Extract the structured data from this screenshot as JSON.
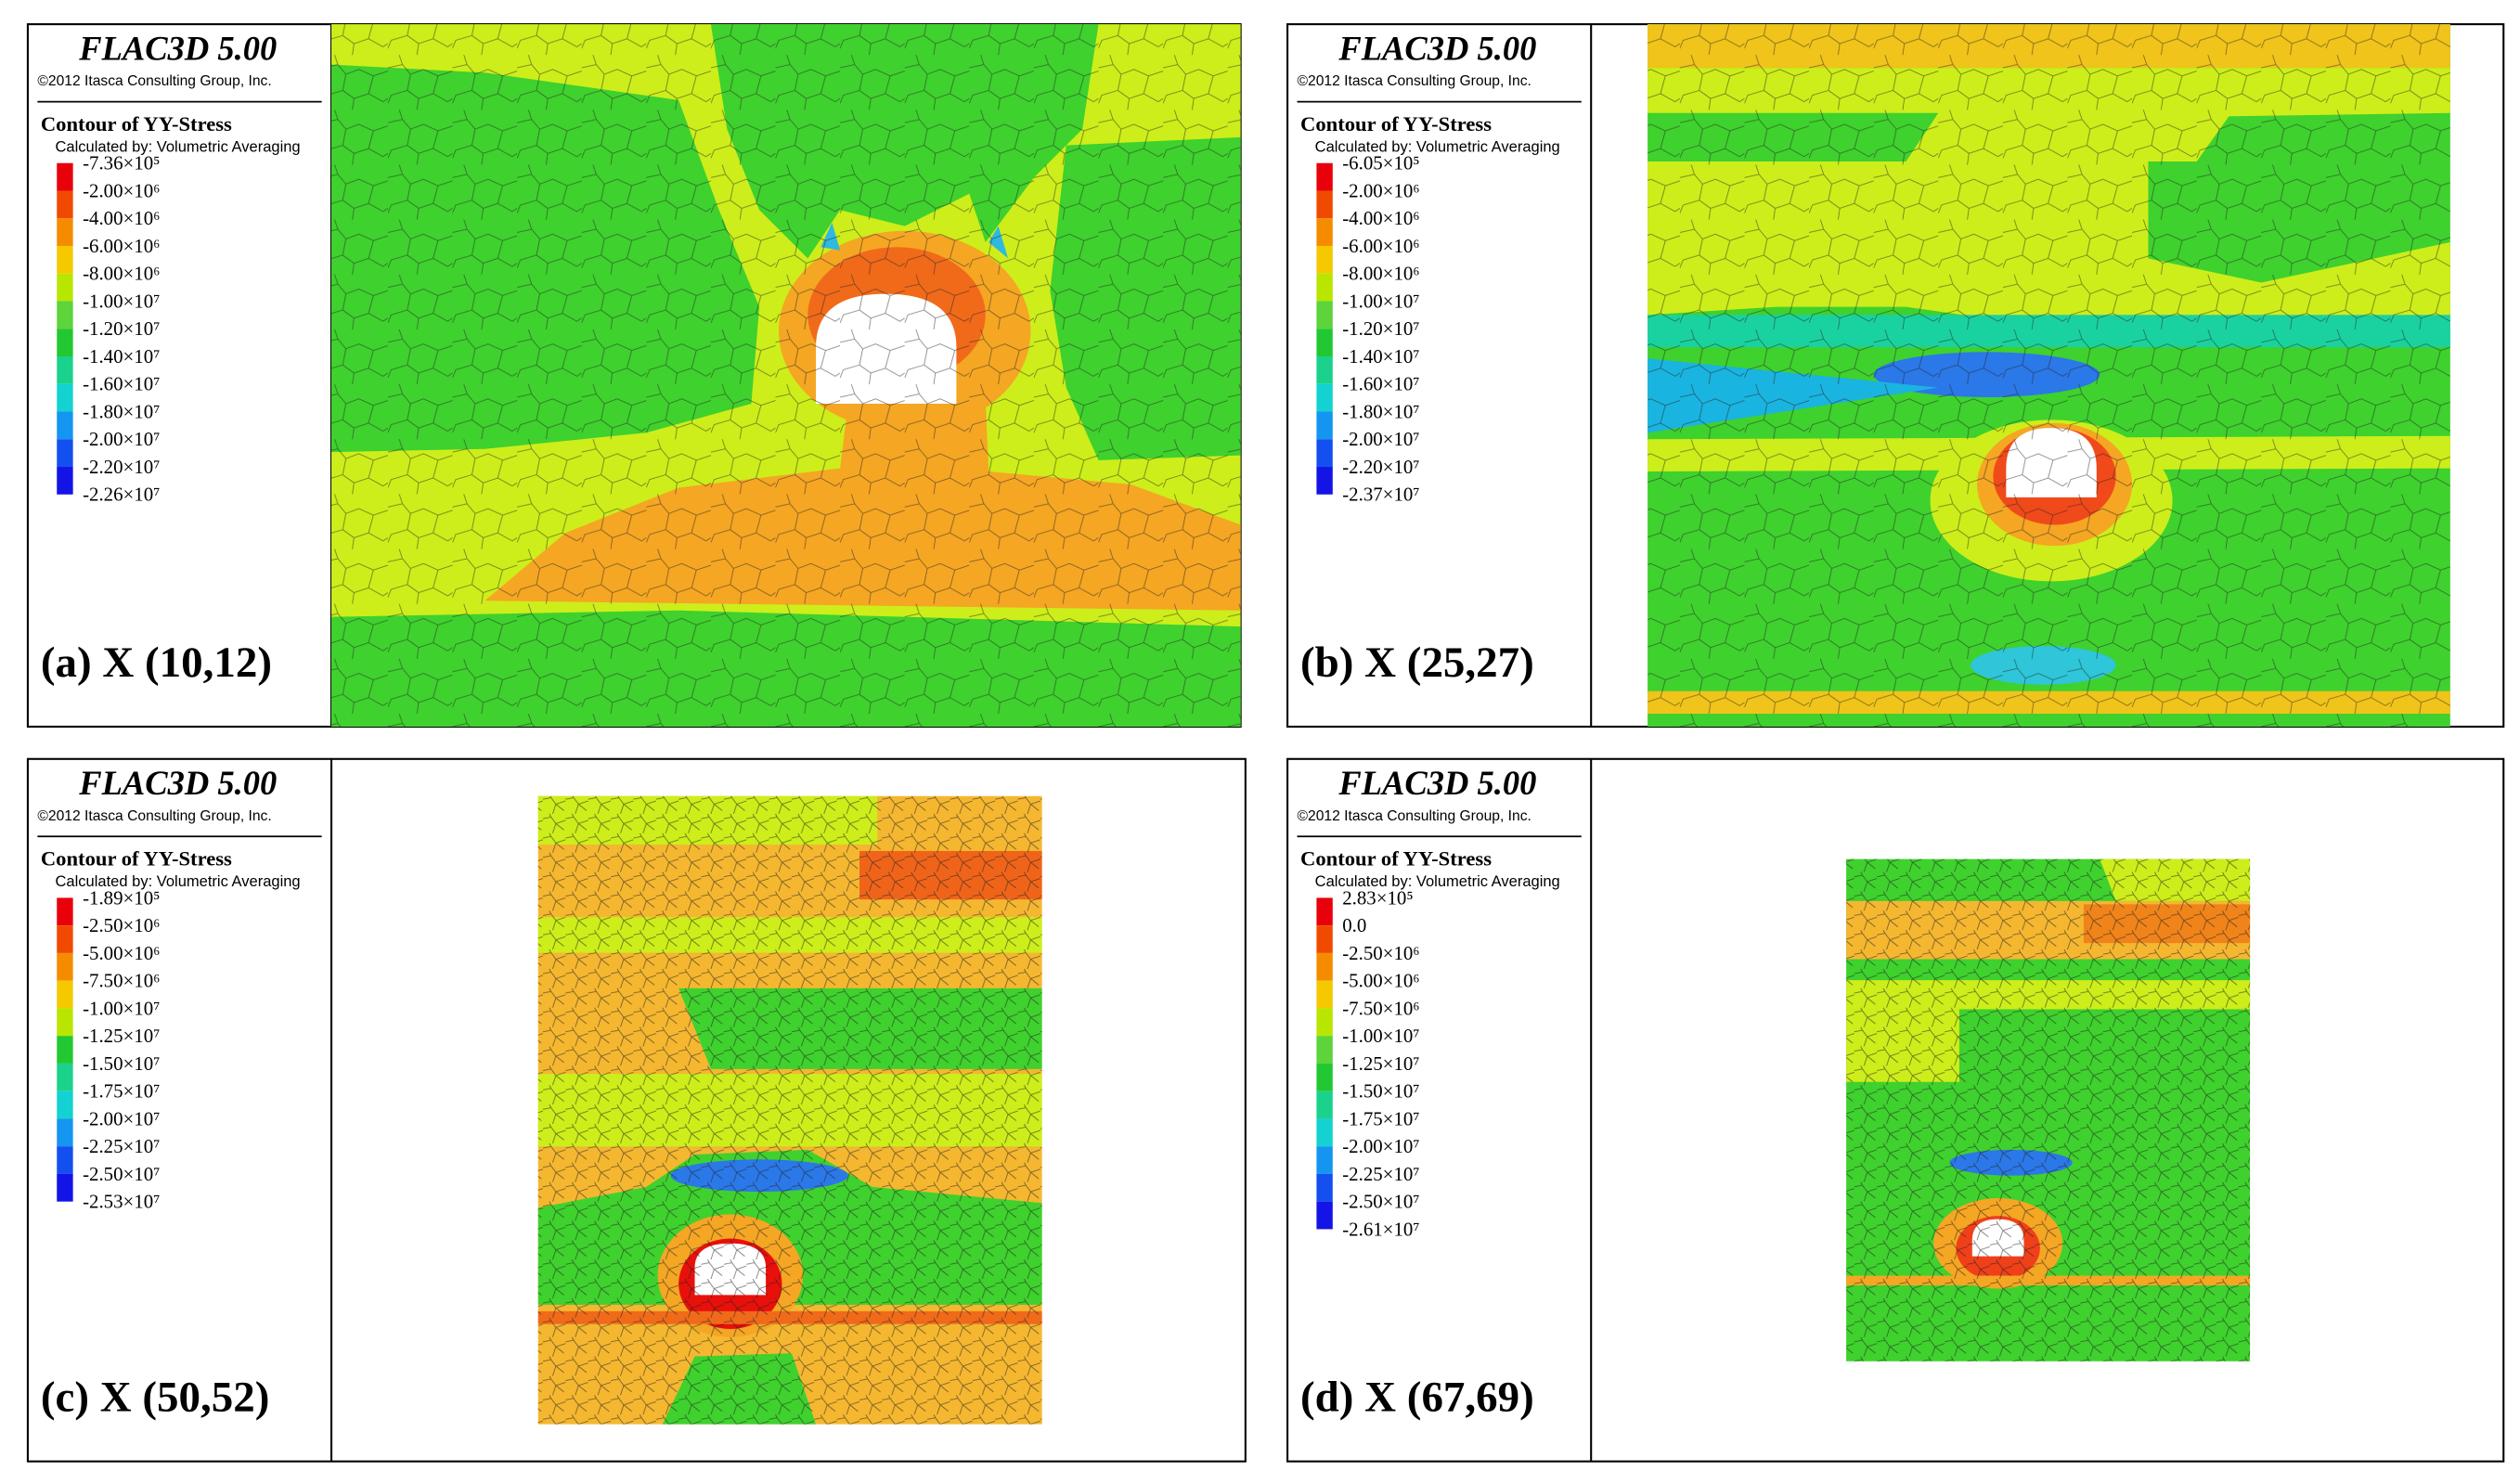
{
  "panels": [
    {
      "title": "FLAC3D 5.00",
      "copyright": "©2012 Itasca Consulting Group, Inc.",
      "contour_title": "Contour of YY-Stress",
      "method": "Calculated by: Volumetric Averaging",
      "legend": [
        "-7.36×10⁵",
        "-2.00×10⁶",
        "-4.00×10⁶",
        "-6.00×10⁶",
        "-8.00×10⁶",
        "-1.00×10⁷",
        "-1.20×10⁷",
        "-1.40×10⁷",
        "-1.60×10⁷",
        "-1.80×10⁷",
        "-2.00×10⁷",
        "-2.20×10⁷",
        "-2.26×10⁷"
      ],
      "caption": "(a) X (10,12)"
    },
    {
      "title": "FLAC3D 5.00",
      "copyright": "©2012 Itasca Consulting Group, Inc.",
      "contour_title": "Contour of YY-Stress",
      "method": "Calculated by: Volumetric Averaging",
      "legend": [
        "-6.05×10⁵",
        "-2.00×10⁶",
        "-4.00×10⁶",
        "-6.00×10⁶",
        "-8.00×10⁶",
        "-1.00×10⁷",
        "-1.20×10⁷",
        "-1.40×10⁷",
        "-1.60×10⁷",
        "-1.80×10⁷",
        "-2.00×10⁷",
        "-2.20×10⁷",
        "-2.37×10⁷"
      ],
      "caption": "(b) X (25,27)"
    },
    {
      "title": "FLAC3D 5.00",
      "copyright": "©2012 Itasca Consulting Group, Inc.",
      "contour_title": "Contour of YY-Stress",
      "method": "Calculated by: Volumetric Averaging",
      "legend": [
        "-1.89×10⁵",
        "-2.50×10⁶",
        "-5.00×10⁶",
        "-7.50×10⁶",
        "-1.00×10⁷",
        "-1.25×10⁷",
        "-1.50×10⁷",
        "-1.75×10⁷",
        "-2.00×10⁷",
        "-2.25×10⁷",
        "-2.50×10⁷",
        "-2.53×10⁷"
      ],
      "caption": "(c) X (50,52)"
    },
    {
      "title": "FLAC3D 5.00",
      "copyright": "©2012 Itasca Consulting Group, Inc.",
      "contour_title": "Contour of YY-Stress",
      "method": "Calculated by: Volumetric Averaging",
      "legend": [
        "2.83×10⁵",
        "0.0",
        "-2.50×10⁶",
        "-5.00×10⁶",
        "-7.50×10⁶",
        "-1.00×10⁷",
        "-1.25×10⁷",
        "-1.50×10⁷",
        "-1.75×10⁷",
        "-2.00×10⁷",
        "-2.25×10⁷",
        "-2.50×10⁷",
        "-2.61×10⁷"
      ],
      "caption": "(d) X (67,69)"
    }
  ]
}
